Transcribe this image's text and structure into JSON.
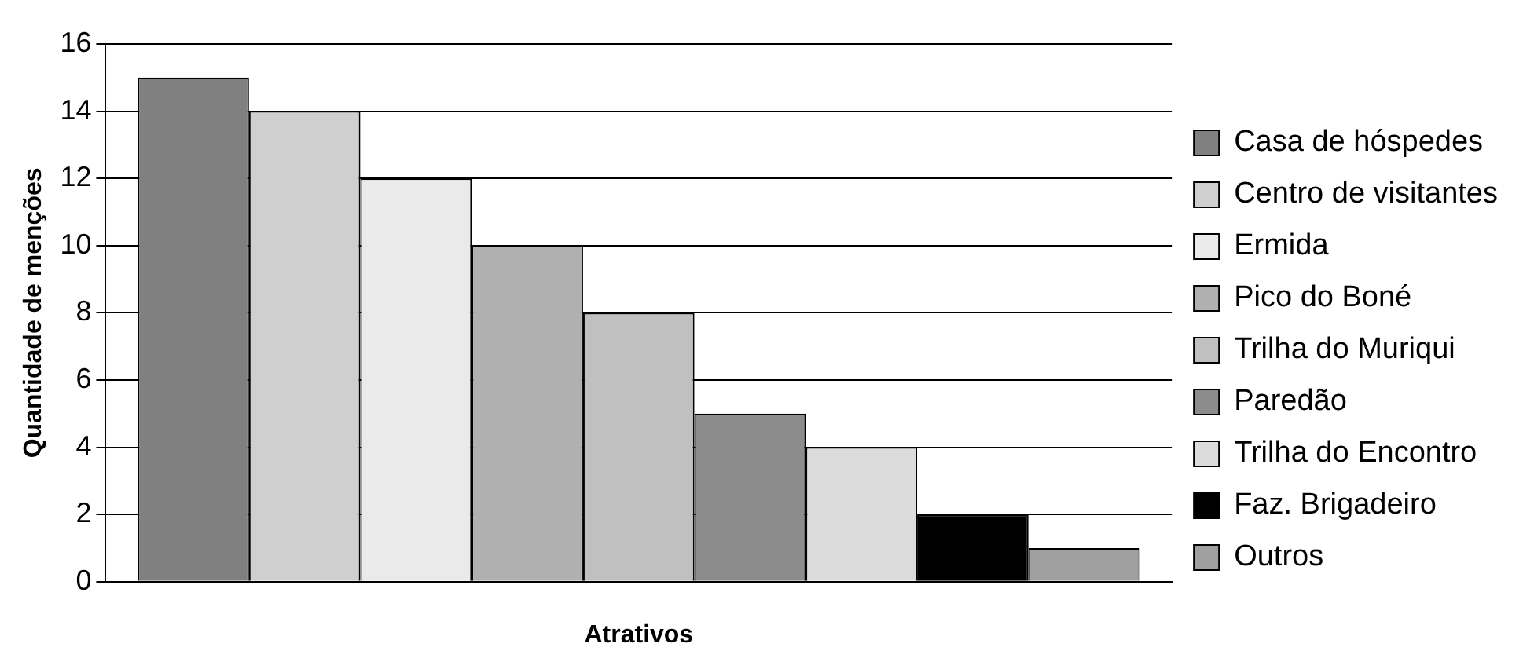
{
  "chart_data": {
    "type": "bar",
    "xlabel": "Atrativos",
    "ylabel": "Quantidade de menções",
    "categories": [
      null
    ],
    "series": [
      {
        "name": "Casa de hóspedes",
        "color": "#808080",
        "values": [
          15
        ]
      },
      {
        "name": "Centro de visitantes",
        "color": "#cfcfcf",
        "values": [
          14
        ]
      },
      {
        "name": "Ermida",
        "color": "#eaeaea",
        "values": [
          12
        ]
      },
      {
        "name": "Pico do Boné",
        "color": "#b0b0b0",
        "values": [
          10
        ]
      },
      {
        "name": "Trilha do Muriqui",
        "color": "#c0c0c0",
        "values": [
          8
        ]
      },
      {
        "name": "Paredão",
        "color": "#8c8c8c",
        "values": [
          5
        ]
      },
      {
        "name": "Trilha do Encontro",
        "color": "#dcdcdc",
        "values": [
          4
        ]
      },
      {
        "name": "Faz. Brigadeiro",
        "color": "#000000",
        "values": [
          2
        ]
      },
      {
        "name": "Outros",
        "color": "#a0a0a0",
        "values": [
          1
        ]
      }
    ],
    "ylim": [
      0,
      16
    ],
    "yticks": [
      0,
      2,
      4,
      6,
      8,
      10,
      12,
      14,
      16
    ],
    "grid": "y",
    "legend": "right"
  }
}
